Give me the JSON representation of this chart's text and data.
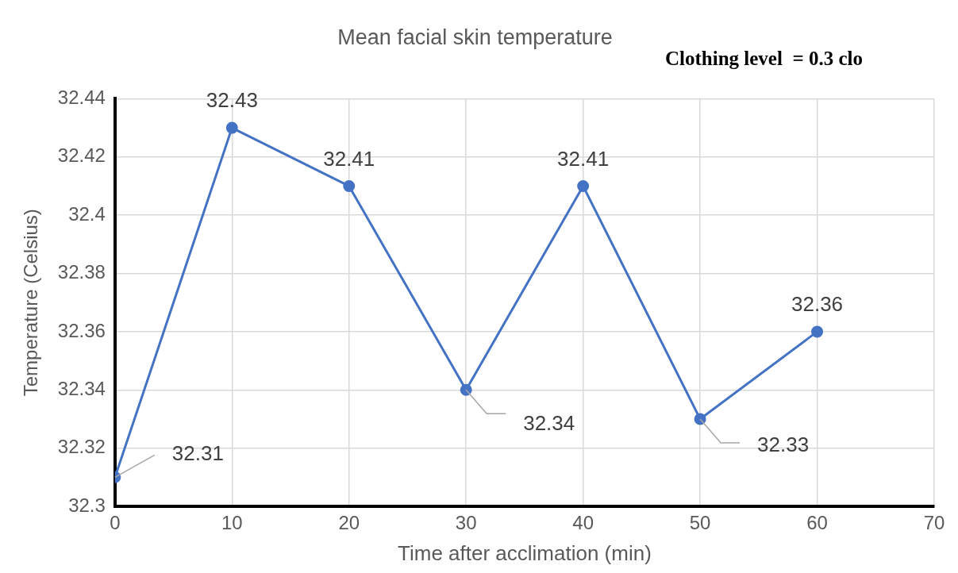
{
  "chart_data": {
    "type": "line",
    "title": "Mean facial skin temperature",
    "annotations": [
      "Clothing level  = 0.3 clo"
    ],
    "xlabel": "Time after acclimation (min)",
    "ylabel": "Temperature (Celsius)",
    "x": [
      0,
      10,
      20,
      30,
      40,
      50,
      60
    ],
    "series": [
      {
        "color": "#4472c4",
        "values": [
          32.31,
          32.43,
          32.41,
          32.34,
          32.41,
          32.33,
          32.36
        ]
      }
    ],
    "xlim": [
      0,
      70
    ],
    "xticks": [
      0,
      10,
      20,
      30,
      40,
      50,
      60,
      70
    ],
    "ylim": [
      32.3,
      32.44
    ],
    "yticks": [
      32.3,
      32.32,
      32.34,
      32.36,
      32.38,
      32.4,
      32.42,
      32.44
    ],
    "grid": true,
    "legend": false,
    "marker": "circle",
    "line_style": "solid",
    "data_labels": true
  }
}
